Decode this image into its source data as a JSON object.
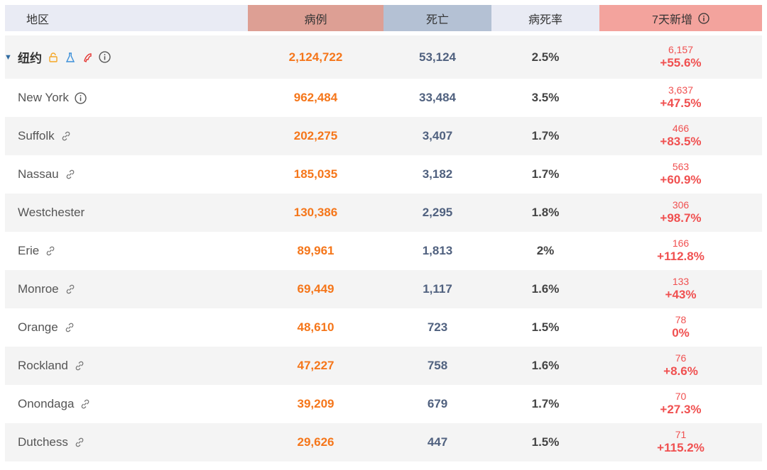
{
  "header": {
    "region": "地区",
    "cases": "病例",
    "deaths": "死亡",
    "rate": "病死率",
    "new7d": "7天新增",
    "new7d_icon": "info-icon"
  },
  "parent": {
    "name": "纽约",
    "icons": [
      "lock-icon",
      "flask-icon",
      "phone-icon",
      "info-icon"
    ],
    "cases": "2,124,722",
    "deaths": "53,124",
    "rate": "2.5%",
    "new_count": "6,157",
    "new_pct": "+55.6%"
  },
  "rows": [
    {
      "name": "New York",
      "icon": "info-icon",
      "cases": "962,484",
      "deaths": "33,484",
      "rate": "3.5%",
      "new_count": "3,637",
      "new_pct": "+47.5%"
    },
    {
      "name": "Suffolk",
      "icon": "link-icon",
      "cases": "202,275",
      "deaths": "3,407",
      "rate": "1.7%",
      "new_count": "466",
      "new_pct": "+83.5%"
    },
    {
      "name": "Nassau",
      "icon": "link-icon",
      "cases": "185,035",
      "deaths": "3,182",
      "rate": "1.7%",
      "new_count": "563",
      "new_pct": "+60.9%"
    },
    {
      "name": "Westchester",
      "icon": "",
      "cases": "130,386",
      "deaths": "2,295",
      "rate": "1.8%",
      "new_count": "306",
      "new_pct": "+98.7%"
    },
    {
      "name": "Erie",
      "icon": "link-icon",
      "cases": "89,961",
      "deaths": "1,813",
      "rate": "2%",
      "new_count": "166",
      "new_pct": "+112.8%"
    },
    {
      "name": "Monroe",
      "icon": "link-icon",
      "cases": "69,449",
      "deaths": "1,117",
      "rate": "1.6%",
      "new_count": "133",
      "new_pct": "+43%"
    },
    {
      "name": "Orange",
      "icon": "link-icon",
      "cases": "48,610",
      "deaths": "723",
      "rate": "1.5%",
      "new_count": "78",
      "new_pct": "0%"
    },
    {
      "name": "Rockland",
      "icon": "link-icon",
      "cases": "47,227",
      "deaths": "758",
      "rate": "1.6%",
      "new_count": "76",
      "new_pct": "+8.6%"
    },
    {
      "name": "Onondaga",
      "icon": "link-icon",
      "cases": "39,209",
      "deaths": "679",
      "rate": "1.7%",
      "new_count": "70",
      "new_pct": "+27.3%"
    },
    {
      "name": "Dutchess",
      "icon": "link-icon",
      "cases": "29,626",
      "deaths": "447",
      "rate": "1.5%",
      "new_count": "71",
      "new_pct": "+115.2%"
    }
  ],
  "colors": {
    "cases": "#f5761a",
    "deaths": "#50617f",
    "new": "#f05050",
    "header_cases_bg": "#dd9f94",
    "header_deaths_bg": "#b4c1d4",
    "header_new_bg": "#f3a39d",
    "header_default_bg": "#e9ebf4"
  }
}
